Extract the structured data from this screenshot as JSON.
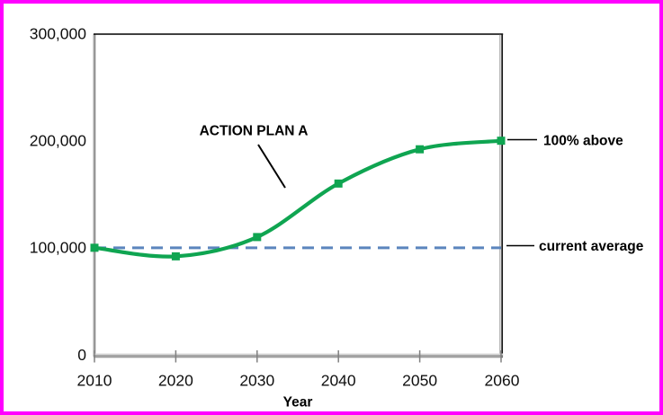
{
  "frame": {
    "border_color": "#FF00FF",
    "background_color": "#FFFFFF"
  },
  "chart_data": {
    "type": "line",
    "title": "",
    "xlabel": "Year",
    "ylabel": "",
    "x": [
      2010,
      2020,
      2030,
      2040,
      2050,
      2060
    ],
    "xticks": [
      "2010",
      "2020",
      "2030",
      "2040",
      "2050",
      "2060"
    ],
    "yticks": [
      {
        "value": 0,
        "label": "0"
      },
      {
        "value": 100000,
        "label": "100,000"
      },
      {
        "value": 200000,
        "label": "200,000"
      },
      {
        "value": 300000,
        "label": "300,000"
      }
    ],
    "ylim": [
      0,
      300000
    ],
    "grid": false,
    "legend": "none",
    "series": [
      {
        "name": "ACTION PLAN A",
        "values": [
          100000,
          92000,
          110000,
          160000,
          192000,
          200000
        ],
        "color": "#0FA551",
        "marker": "square",
        "smooth": true
      }
    ],
    "reference_line": {
      "value": 100000,
      "label": "current average",
      "style": "dashed",
      "color": "#5B85BD"
    },
    "annotations": {
      "plan_label": "ACTION PLAN A",
      "end_label": "100% above",
      "reference_label": "current average"
    },
    "colors": {
      "series_green": "#0FA551",
      "reference_blue": "#5B85BD",
      "axis_gray": "#8A8A8A",
      "text_black": "#000000"
    }
  }
}
